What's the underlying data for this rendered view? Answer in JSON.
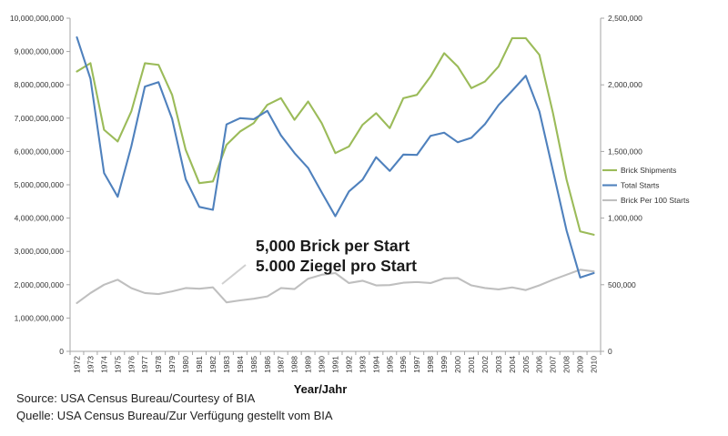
{
  "chart_data": {
    "type": "line",
    "xlabel": "Year/Jahr",
    "x": [
      "1972",
      "1973",
      "1974",
      "1975",
      "1976",
      "1977",
      "1978",
      "1979",
      "1980",
      "1981",
      "1982",
      "1983",
      "1984",
      "1985",
      "1986",
      "1987",
      "1988",
      "1989",
      "1990",
      "1991",
      "1992",
      "1993",
      "1994",
      "1995",
      "1996",
      "1997",
      "1998",
      "1999",
      "2000",
      "2001",
      "2002",
      "2003",
      "2004",
      "2005",
      "2006",
      "2007",
      "2008",
      "2009",
      "2010"
    ],
    "y_left": {
      "ylim": [
        0,
        10000000000
      ],
      "ticks": [
        0,
        1000000000,
        2000000000,
        3000000000,
        4000000000,
        5000000000,
        6000000000,
        7000000000,
        8000000000,
        9000000000,
        10000000000
      ],
      "tick_labels": [
        "0",
        "1,000,000,000",
        "2,000,000,000",
        "3,000,000,000",
        "4,000,000,000",
        "5,000,000,000",
        "6,000,000,000",
        "7,000,000,000",
        "8,000,000,000",
        "9,000,000,000",
        "10,000,000,000"
      ]
    },
    "y_right": {
      "ylim": [
        0,
        2500000
      ],
      "ticks": [
        0,
        500000,
        1000000,
        1500000,
        2000000,
        2500000
      ],
      "tick_labels": [
        "0",
        "500,000",
        "1,000,000",
        "1,500,000",
        "2,000,000",
        "2,500,000"
      ]
    },
    "grid": false,
    "legend_position": "right",
    "series": [
      {
        "name": "Brick Shipments",
        "axis": "left",
        "color": "#9bbb59",
        "values": [
          8400000000,
          8650000000,
          6650000000,
          6300000000,
          7200000000,
          8650000000,
          8600000000,
          7700000000,
          6050000000,
          5050000000,
          5100000000,
          6200000000,
          6600000000,
          6850000000,
          7400000000,
          7600000000,
          6950000000,
          7500000000,
          6850000000,
          5950000000,
          6150000000,
          6800000000,
          7150000000,
          6700000000,
          7600000000,
          7700000000,
          8250000000,
          8950000000,
          8550000000,
          7900000000,
          8100000000,
          8550000000,
          9400000000,
          9400000000,
          8900000000,
          7150000000,
          5150000000,
          3600000000,
          3500000000
        ]
      },
      {
        "name": "Total Starts",
        "axis": "right",
        "color": "#4f81bd",
        "values": [
          2357000,
          2045000,
          1338000,
          1160000,
          1538000,
          1987000,
          2020000,
          1745000,
          1292000,
          1084000,
          1062000,
          1703000,
          1750000,
          1742000,
          1805000,
          1621000,
          1488000,
          1376000,
          1193000,
          1014000,
          1200000,
          1288000,
          1457000,
          1354000,
          1477000,
          1474000,
          1617000,
          1641000,
          1569000,
          1603000,
          1705000,
          1848000,
          1956000,
          2068000,
          1801000,
          1355000,
          906000,
          554000,
          587000
        ]
      },
      {
        "name": "Brick Per 100 Starts",
        "axis": "left",
        "color": "#bfbfbf",
        "values": [
          1450000000,
          1750000000,
          2000000000,
          2150000000,
          1900000000,
          1750000000,
          1720000000,
          1800000000,
          1900000000,
          1880000000,
          1920000000,
          1470000000,
          1530000000,
          1580000000,
          1650000000,
          1900000000,
          1870000000,
          2180000000,
          2300000000,
          2350000000,
          2050000000,
          2120000000,
          1980000000,
          1990000000,
          2060000000,
          2080000000,
          2050000000,
          2190000000,
          2200000000,
          1980000000,
          1900000000,
          1860000000,
          1920000000,
          1840000000,
          1980000000,
          2150000000,
          2300000000,
          2450000000,
          2400000000
        ]
      }
    ],
    "annotations": [
      "5,000 Brick per Start",
      "5.000 Ziegel pro Start"
    ]
  },
  "source": {
    "line1": "Source: USA Census Bureau/Courtesy of BIA",
    "line2": "Quelle: USA Census Bureau/Zur Verfügung gestellt vom BIA"
  }
}
